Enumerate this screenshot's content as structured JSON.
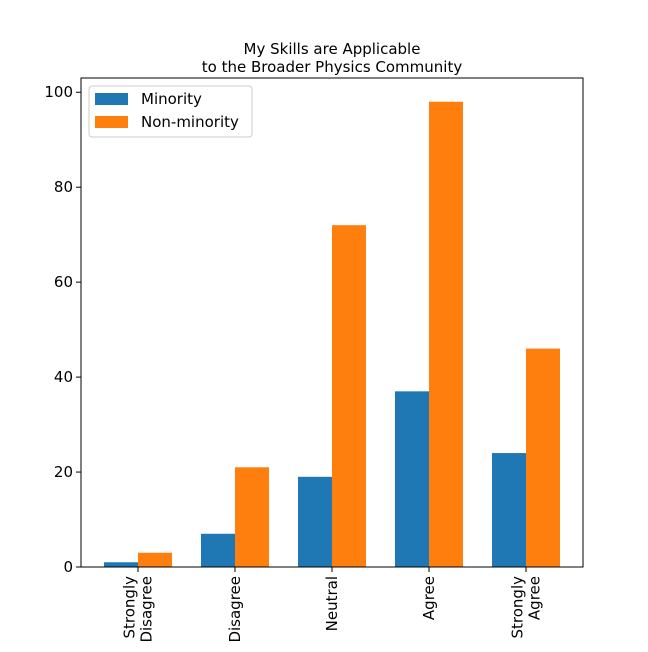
{
  "chart_data": {
    "type": "bar",
    "title_lines": [
      "My Skills are Applicable",
      "to the Broader Physics Community"
    ],
    "categories": [
      [
        "Strongly",
        "Disagree"
      ],
      [
        "Disagree"
      ],
      [
        "Neutral"
      ],
      [
        "Agree"
      ],
      [
        "Strongly",
        "Agree"
      ]
    ],
    "series": [
      {
        "name": "Minority",
        "color": "#1f77b4",
        "values": [
          1,
          7,
          19,
          37,
          24
        ]
      },
      {
        "name": "Non-minority",
        "color": "#ff7f0e",
        "values": [
          3,
          21,
          72,
          98,
          46
        ]
      }
    ],
    "ylim": [
      0,
      103
    ],
    "yticks": [
      0,
      20,
      40,
      60,
      80,
      100
    ],
    "legend_position": "upper-left",
    "grid": false
  }
}
